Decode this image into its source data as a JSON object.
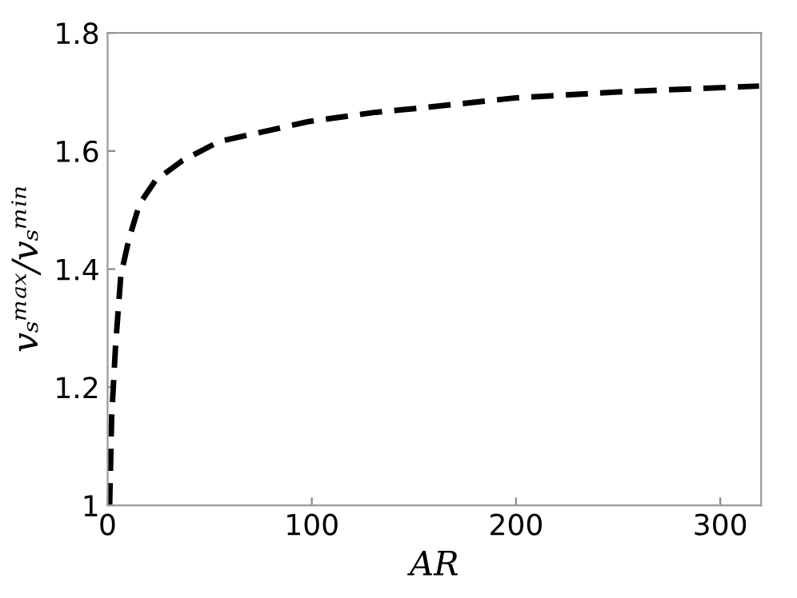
{
  "chart_data": {
    "type": "line",
    "xlabel": "AR",
    "ylabel": "vₛᵐᵃˣ/vₛᵐⁱⁿ",
    "xlim": [
      0,
      320
    ],
    "xticks": [
      0,
      100,
      200,
      300
    ],
    "ylim": [
      1,
      1.8
    ],
    "yticks": [
      1,
      1.2,
      1.4,
      1.6,
      1.8
    ],
    "grid": false,
    "line_style": "dashed",
    "marker": "none",
    "series": [
      {
        "color": "#000000",
        "x": [
          1,
          2,
          3.9,
          6.5,
          10.4,
          15.6,
          23.4,
          36.3,
          54.6,
          72.7,
          98.7,
          129.9,
          150.7,
          200,
          250,
          319
        ],
        "values": [
          1.0,
          1.15,
          1.27,
          1.39,
          1.45,
          1.51,
          1.55,
          1.583,
          1.616,
          1.63,
          1.65,
          1.665,
          1.672,
          1.69,
          1.7,
          1.71
        ]
      }
    ]
  }
}
